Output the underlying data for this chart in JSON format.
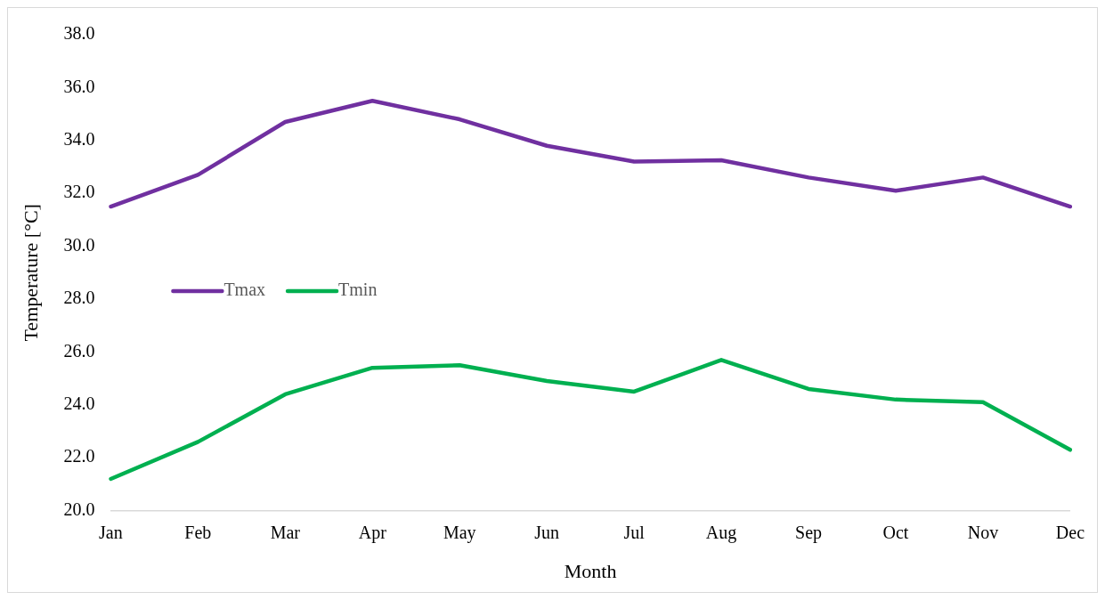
{
  "chart_data": {
    "type": "line",
    "xlabel": "Month",
    "ylabel": "Temperature [°C]",
    "categories": [
      "Jan",
      "Feb",
      "Mar",
      "Apr",
      "May",
      "Jun",
      "Jul",
      "Aug",
      "Sep",
      "Oct",
      "Nov",
      "Dec"
    ],
    "series": [
      {
        "name": "Tmax",
        "color": "#7030a0",
        "values": [
          31.5,
          32.7,
          34.7,
          35.5,
          34.8,
          33.8,
          33.2,
          33.25,
          32.6,
          32.1,
          32.6,
          31.5
        ]
      },
      {
        "name": "Tmin",
        "color": "#00b050",
        "values": [
          21.2,
          22.6,
          24.4,
          25.4,
          25.5,
          24.9,
          24.5,
          25.7,
          24.6,
          24.2,
          24.1,
          22.3
        ]
      }
    ],
    "ylim": [
      20,
      38
    ],
    "yticks": [
      {
        "value": 20,
        "label": "20.0"
      },
      {
        "value": 22,
        "label": "22.0"
      },
      {
        "value": 24,
        "label": "24.0"
      },
      {
        "value": 26,
        "label": "26.0"
      },
      {
        "value": 28,
        "label": "28.0"
      },
      {
        "value": 30,
        "label": "30.0"
      },
      {
        "value": 32,
        "label": "32.0"
      },
      {
        "value": 34,
        "label": "34.0"
      },
      {
        "value": 36,
        "label": "36.0"
      },
      {
        "value": 38,
        "label": "38.0"
      }
    ],
    "grid": false,
    "legend": "left",
    "marker": "none",
    "line_style": "solid"
  }
}
